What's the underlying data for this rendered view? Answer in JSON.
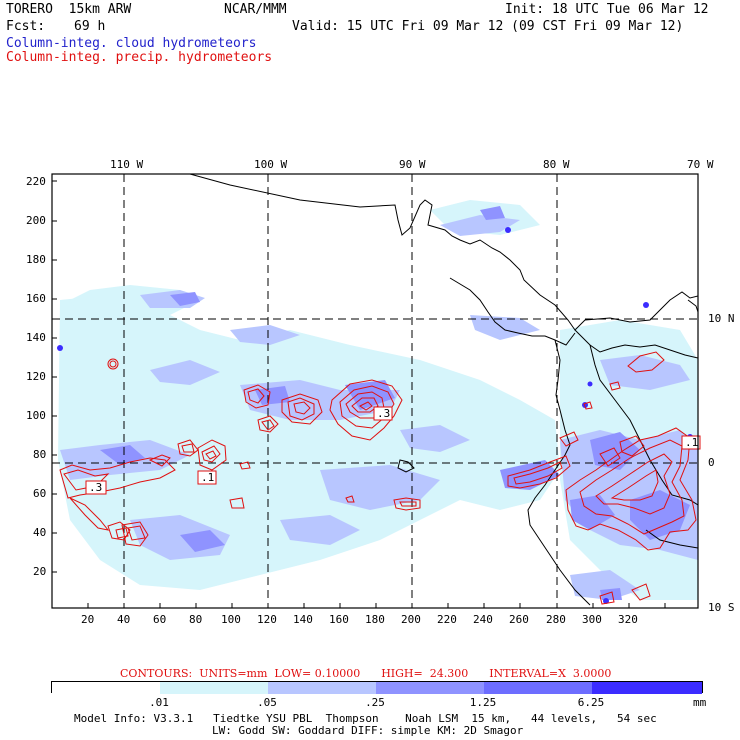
{
  "header": {
    "model": "TORERO  15km ARW",
    "org": "NCAR/MMM",
    "init": "Init: 18 UTC Tue 06 Mar 12",
    "fcst_label": "Fcst:",
    "fcst_value": "69 h",
    "valid": "Valid: 15 UTC Fri 09 Mar 12 (09 CST Fri 09 Mar 12)",
    "field1": "Column-integ. cloud hydrometeors",
    "field2": "Column-integ. precip. hydrometeors"
  },
  "map": {
    "lon_labels": [
      "110 W",
      "100 W",
      "90 W",
      "80 W",
      "70 W"
    ],
    "lat_labels": [
      "10 N",
      "0",
      "10 S"
    ],
    "x_ticks": [
      "20",
      "40",
      "60",
      "80",
      "100",
      "120",
      "140",
      "160",
      "180",
      "200",
      "220",
      "240",
      "260",
      "280",
      "300",
      "320"
    ],
    "y_ticks": [
      "220",
      "200",
      "180",
      "160",
      "140",
      "120",
      "100",
      "80",
      "60",
      "40",
      "20"
    ],
    "contour_labels": [
      ".3",
      ".1",
      ".3",
      ".1"
    ],
    "colors": {
      "light": "#d6f5fb",
      "mid1": "#b8c6ff",
      "mid2": "#8f93ff",
      "mid3": "#6d6dff",
      "dark": "#3b2cff",
      "precip": "#e01010",
      "coast": "#000000"
    }
  },
  "contours_info": "CONTOURS:  UNITS=mm  LOW= 0.10000      HIGH=  24.300      INTERVAL=X  3.0000",
  "colorbar": {
    "labels": [
      ".01",
      ".05",
      ".25",
      "1.25",
      "6.25"
    ],
    "unit": "mm",
    "colors": [
      "#ffffff",
      "#d6f5fb",
      "#b8c6ff",
      "#8f93ff",
      "#6d6dff",
      "#3b2cff"
    ]
  },
  "footer": {
    "line1": "Model Info: V3.3.1   Tiedtke YSU PBL  Thompson    Noah LSM  15 km,   44 levels,   54 sec",
    "line2": "LW: Godd SW: Goddard DIFF: simple KM: 2D Smagor"
  }
}
